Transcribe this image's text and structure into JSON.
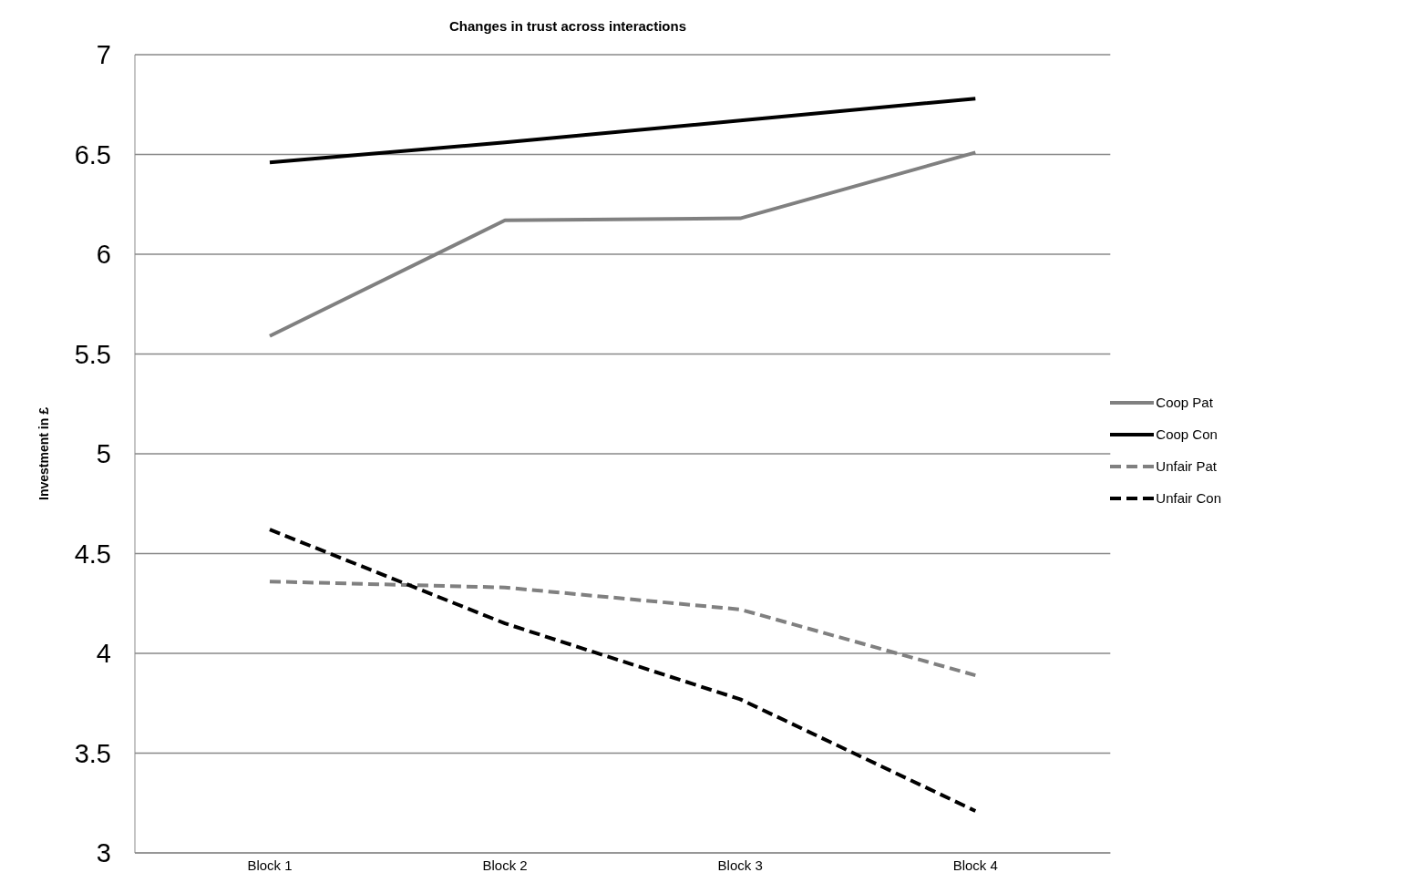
{
  "chart_data": {
    "type": "line",
    "title": "Changes in trust across interactions",
    "ylabel": "Investment in £",
    "categories": [
      "Block 1",
      "Block 2",
      "Block 3",
      "Block 4"
    ],
    "series": [
      {
        "name": "Coop Pat",
        "color": "#808080",
        "line_style": "solid",
        "values": [
          5.59,
          6.17,
          6.18,
          6.51
        ]
      },
      {
        "name": "Coop Con",
        "color": "#000000",
        "line_style": "solid",
        "values": [
          6.46,
          6.56,
          6.67,
          6.78
        ]
      },
      {
        "name": "Unfair Pat",
        "color": "#808080",
        "line_style": "dashed",
        "values": [
          4.36,
          4.33,
          4.22,
          3.89
        ]
      },
      {
        "name": "Unfair Con",
        "color": "#000000",
        "line_style": "dashed",
        "values": [
          4.62,
          4.15,
          3.77,
          3.21
        ]
      }
    ],
    "ylim": [
      3,
      7
    ],
    "yticks": [
      3,
      3.5,
      4,
      4.5,
      5,
      5.5,
      6,
      6.5,
      7
    ],
    "grid": "y",
    "legend": "right",
    "marker": "none"
  }
}
